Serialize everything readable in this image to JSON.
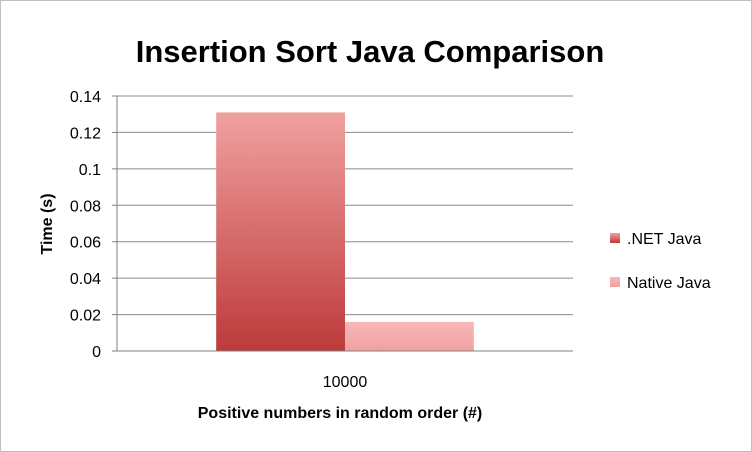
{
  "chart_data": {
    "type": "bar",
    "title": "Insertion Sort Java Comparison",
    "xlabel": "Positive numbers in random order (#)",
    "ylabel": "Time (s)",
    "categories": [
      "10000"
    ],
    "series": [
      {
        "name": ".NET Java",
        "values": [
          0.131
        ],
        "color_top": "#f1a0a0",
        "color_bottom": "#bd3a3a"
      },
      {
        "name": "Native Java",
        "values": [
          0.016
        ],
        "color_top": "#f8b8b8",
        "color_bottom": "#f0a0a0"
      }
    ],
    "ylim": [
      0,
      0.14
    ],
    "yticks": [
      0,
      0.02,
      0.04,
      0.06,
      0.08,
      0.1,
      0.12,
      0.14
    ],
    "ytick_labels": [
      "0",
      "0.02",
      "0.04",
      "0.06",
      "0.08",
      "0.1",
      "0.12",
      "0.14"
    ],
    "grid": true,
    "legend_position": "right"
  }
}
